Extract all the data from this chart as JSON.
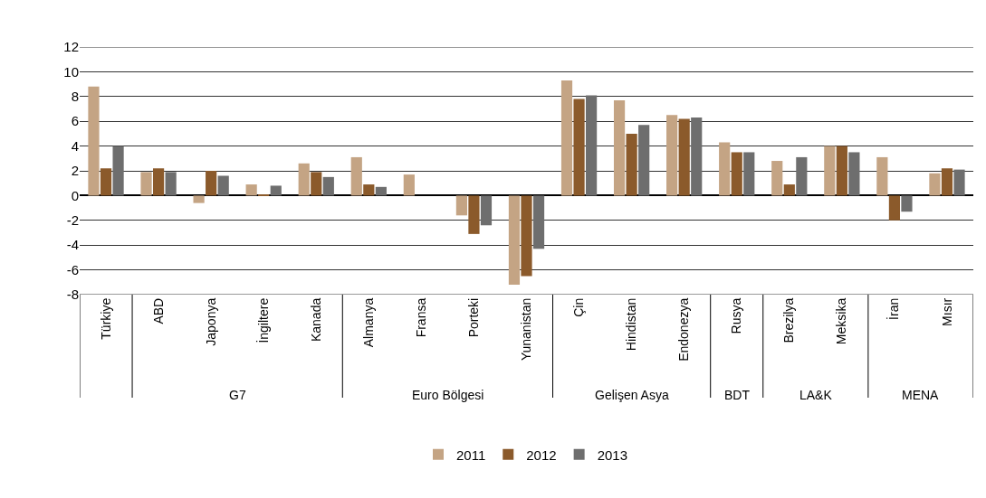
{
  "chart_data": {
    "type": "bar",
    "categories": [
      "Türkiye",
      "ABD",
      "Japonya",
      "İngiltere",
      "Kanada",
      "Almanya",
      "Fransa",
      "Porteki",
      "Yunanistan",
      "Çin",
      "Hindistan",
      "Endonezya",
      "Rusya",
      "Brezilya",
      "Meksika",
      "İran",
      "Mısır"
    ],
    "annotations": [
      "G7",
      "Euro Bölgesi",
      "Gelişen Asya",
      "BDT",
      "LA&K",
      "MENA"
    ],
    "series": [
      {
        "name": "2011",
        "color": "#c4a484",
        "values": [
          8.8,
          1.9,
          -0.6,
          0.9,
          2.6,
          3.1,
          1.7,
          -1.6,
          -7.2,
          9.3,
          7.7,
          6.5,
          4.3,
          2.8,
          4.0,
          3.1,
          1.8
        ]
      },
      {
        "name": "2012",
        "color": "#8b5a2b",
        "values": [
          2.2,
          2.2,
          2.0,
          0.1,
          1.9,
          0.9,
          0.0,
          -3.1,
          -6.5,
          7.8,
          5.0,
          6.2,
          3.5,
          0.9,
          4.0,
          -2.0,
          2.2
        ]
      },
      {
        "name": "2013",
        "color": "#6e6e6e",
        "values": [
          4.0,
          1.9,
          1.6,
          0.8,
          1.5,
          0.7,
          0.0,
          -2.4,
          -4.3,
          8.1,
          5.7,
          6.3,
          3.5,
          3.1,
          3.5,
          -1.3,
          2.1
        ]
      }
    ],
    "ylim": [
      -8,
      12
    ],
    "yticks": [
      -8,
      -6,
      -4,
      -2,
      0,
      2,
      4,
      6,
      8,
      10,
      12
    ],
    "grid": "y",
    "legend": "bottom"
  }
}
